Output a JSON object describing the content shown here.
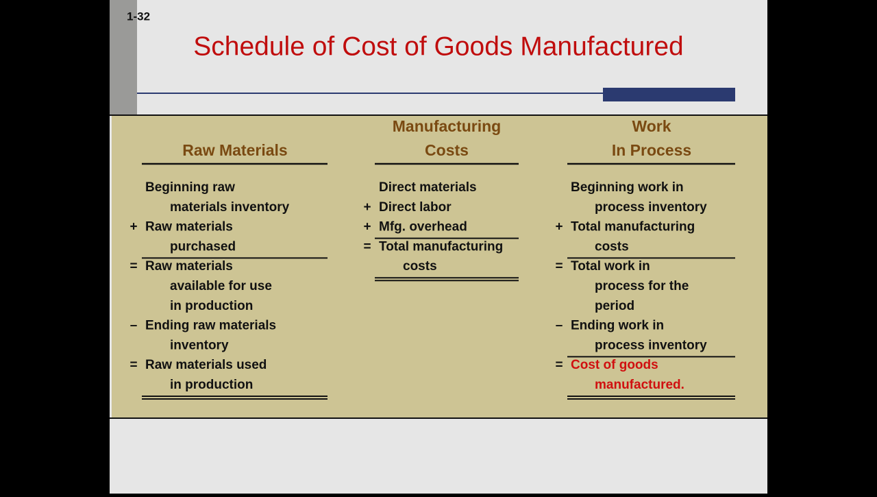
{
  "slide_number": "1-32",
  "title": "Schedule of Cost of Goods Manufactured",
  "columns": [
    {
      "header": [
        "Raw Materials"
      ],
      "items": [
        {
          "op": null,
          "lines": [
            "Beginning raw",
            "materials inventory"
          ]
        },
        {
          "op": "+",
          "lines": [
            "Raw materials",
            "purchased"
          ],
          "rule": "single"
        },
        {
          "op": "=",
          "lines": [
            "Raw materials",
            "available for use",
            "in production"
          ]
        },
        {
          "op": "–",
          "lines": [
            "Ending raw materials",
            "inventory"
          ]
        },
        {
          "op": "=",
          "lines": [
            "Raw materials used",
            "in production"
          ],
          "rule": "double"
        }
      ]
    },
    {
      "header": [
        "Manufacturing",
        "Costs"
      ],
      "items": [
        {
          "op": null,
          "lines": [
            "Direct materials"
          ]
        },
        {
          "op": "+",
          "lines": [
            "Direct labor"
          ]
        },
        {
          "op": "+",
          "lines": [
            "Mfg. overhead"
          ],
          "rule": "single"
        },
        {
          "op": "=",
          "lines": [
            "Total manufacturing",
            "costs"
          ],
          "rule": "double"
        }
      ]
    },
    {
      "header": [
        "Work",
        "In Process"
      ],
      "items": [
        {
          "op": null,
          "lines": [
            "Beginning work in",
            "process inventory"
          ]
        },
        {
          "op": "+",
          "lines": [
            "Total manufacturing",
            "costs"
          ],
          "rule": "single"
        },
        {
          "op": "=",
          "lines": [
            "Total work in",
            "process for the",
            "period"
          ]
        },
        {
          "op": "–",
          "lines": [
            "Ending work in",
            "process inventory"
          ],
          "rule": "single"
        },
        {
          "op": "=",
          "lines": [
            "Cost of goods",
            "manufactured."
          ],
          "rule": "double",
          "color": "#d01010"
        }
      ]
    }
  ]
}
